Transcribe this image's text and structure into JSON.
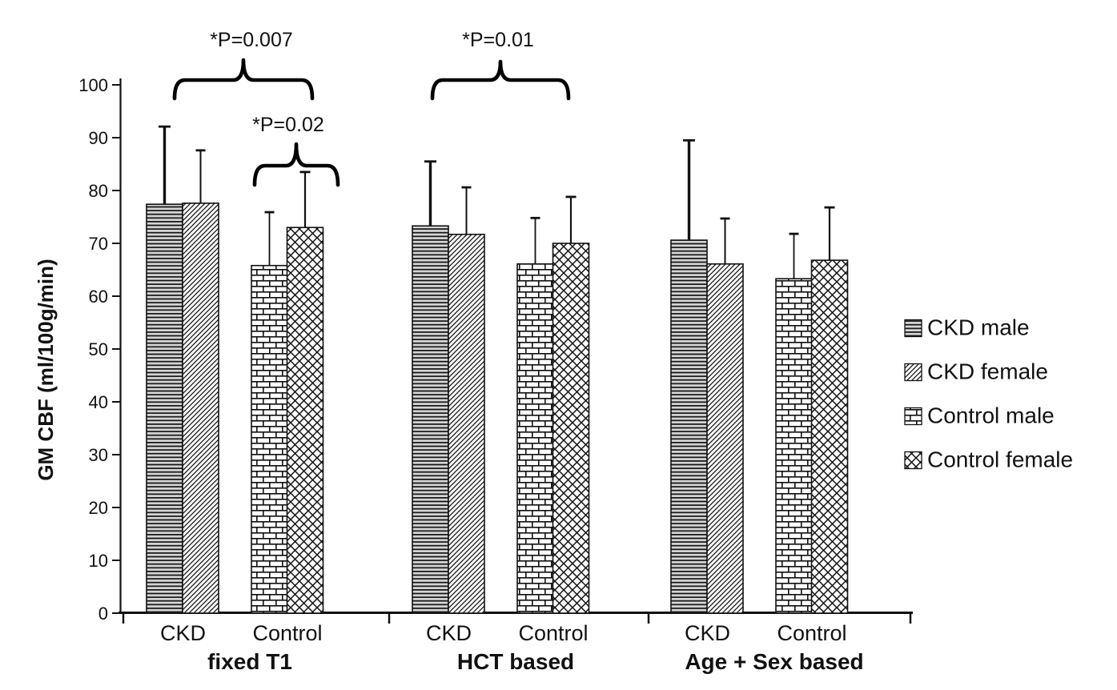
{
  "chart_data": {
    "type": "bar",
    "title": "",
    "ylabel": "GM CBF (ml/100g/min)",
    "xlabel": "",
    "ylim": [
      0,
      100
    ],
    "ytick_step": 10,
    "yticks": [
      0,
      10,
      20,
      30,
      40,
      50,
      60,
      70,
      80,
      90,
      100
    ],
    "grid": false,
    "legend_position": "right",
    "groups": [
      "fixed T1",
      "HCT based",
      "Age + Sex based"
    ],
    "subgroup_labels": [
      "CKD",
      "Control"
    ],
    "series": [
      {
        "name": "CKD male",
        "pattern": "hlines",
        "values": [
          77.4,
          73.3,
          70.6
        ],
        "errors": [
          14.7,
          12.2,
          18.9
        ]
      },
      {
        "name": "CKD female",
        "pattern": "diag",
        "values": [
          77.6,
          71.7,
          66.1
        ],
        "errors": [
          10.0,
          8.9,
          8.6
        ]
      },
      {
        "name": "Control male",
        "pattern": "brick",
        "values": [
          65.8,
          66.1,
          63.3
        ],
        "errors": [
          10.1,
          8.7,
          8.5
        ]
      },
      {
        "name": "Control female",
        "pattern": "diamond",
        "values": [
          73.0,
          70.0,
          66.8
        ],
        "errors": [
          10.5,
          8.8,
          10.0
        ]
      }
    ],
    "error_bars": "upper SD whiskers only",
    "annotations": [
      {
        "text": "*P=0.007",
        "compares": "fixed T1: CKD vs Control",
        "label_x": 314,
        "label_y": 58,
        "x1": 218,
        "x2": 390,
        "y_top": 75,
        "y_mid": 100,
        "y_bottom": 123
      },
      {
        "text": "*P=0.02",
        "compares": "fixed T1: Control male vs female",
        "label_x": 360,
        "label_y": 164,
        "x1": 318,
        "x2": 422,
        "y_top": 180,
        "y_mid": 207,
        "y_bottom": 231
      },
      {
        "text": "*P=0.01",
        "compares": "HCT based: CKD vs Control",
        "label_x": 622,
        "label_y": 58,
        "x1": 540,
        "x2": 710,
        "y_top": 77,
        "y_mid": 100,
        "y_bottom": 123
      }
    ],
    "colors": {
      "ink": "#111111",
      "background": "#ffffff",
      "bar_fill_gray": "#d4d4d4"
    }
  }
}
